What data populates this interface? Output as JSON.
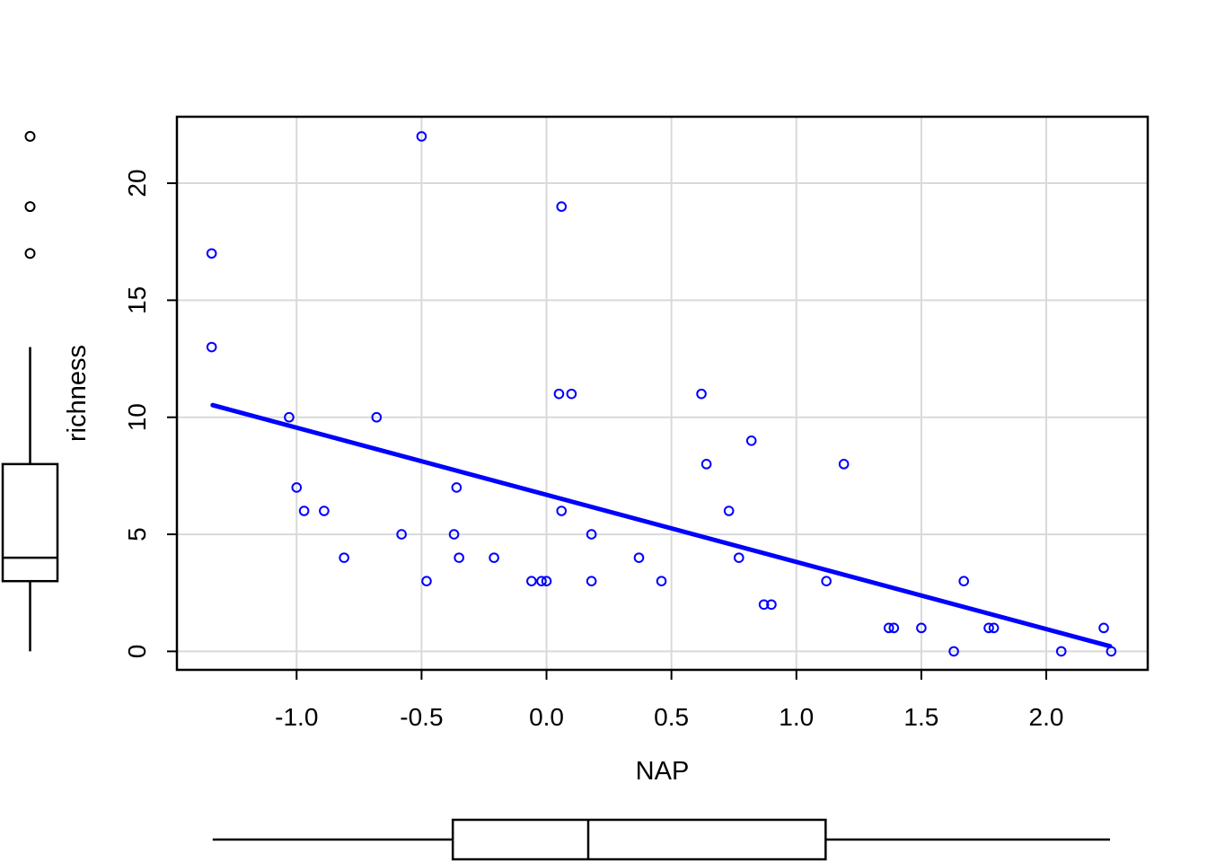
{
  "figure": {
    "background": "#ffffff",
    "point_color": "#0000ff",
    "line_color": "#0000ff",
    "grid_color": "#d9d9d9",
    "axis_color": "#000000",
    "boxplot_color": "#000000",
    "outlier_color": "#000000"
  },
  "chart_data": {
    "type": "scatter",
    "title": "",
    "xlabel": "NAP",
    "ylabel": "richness",
    "grid": true,
    "legend": "none",
    "xlim": [
      -1.479,
      2.406
    ],
    "ylim": [
      -0.79,
      22.84
    ],
    "x_ticks": [
      -1.0,
      -0.5,
      0.0,
      0.5,
      1.0,
      1.5,
      2.0
    ],
    "x_tick_labels": [
      "-1.0",
      "-0.5",
      "0.0",
      "0.5",
      "1.0",
      "1.5",
      "2.0"
    ],
    "y_ticks": [
      0,
      5,
      10,
      15,
      20
    ],
    "y_tick_labels": [
      "0",
      "5",
      "10",
      "15",
      "20"
    ],
    "points": [
      [
        -1.34,
        17
      ],
      [
        -1.34,
        13
      ],
      [
        -1.03,
        10
      ],
      [
        -1.0,
        7
      ],
      [
        -0.97,
        6
      ],
      [
        -0.89,
        6
      ],
      [
        -0.81,
        4
      ],
      [
        -0.68,
        10
      ],
      [
        -0.58,
        5
      ],
      [
        -0.5,
        22
      ],
      [
        -0.48,
        3
      ],
      [
        -0.37,
        5
      ],
      [
        -0.36,
        7
      ],
      [
        -0.35,
        4
      ],
      [
        -0.21,
        4
      ],
      [
        -0.06,
        3
      ],
      [
        -0.02,
        3
      ],
      [
        0.0,
        3
      ],
      [
        0.05,
        11
      ],
      [
        0.06,
        19
      ],
      [
        0.06,
        6
      ],
      [
        0.1,
        11
      ],
      [
        0.18,
        5
      ],
      [
        0.18,
        3
      ],
      [
        0.37,
        4
      ],
      [
        0.46,
        3
      ],
      [
        0.62,
        11
      ],
      [
        0.64,
        8
      ],
      [
        0.73,
        6
      ],
      [
        0.77,
        4
      ],
      [
        0.82,
        9
      ],
      [
        0.87,
        2
      ],
      [
        0.9,
        2
      ],
      [
        1.12,
        3
      ],
      [
        1.19,
        8
      ],
      [
        1.37,
        1
      ],
      [
        1.39,
        1
      ],
      [
        1.5,
        1
      ],
      [
        1.63,
        0
      ],
      [
        1.67,
        3
      ],
      [
        1.77,
        1
      ],
      [
        1.79,
        1
      ],
      [
        2.06,
        0
      ],
      [
        2.23,
        1
      ],
      [
        2.26,
        0
      ]
    ],
    "regression_line": {
      "x1": -1.336,
      "y1": 10.52,
      "x2": 2.255,
      "y2": 0.22,
      "slope": -2.867,
      "intercept": 6.686
    },
    "x_marginal_boxplot": {
      "orientation": "horizontal",
      "whisker_low": -1.336,
      "q1": -0.375,
      "median": 0.167,
      "q3": 1.117,
      "whisker_high": 2.255,
      "outliers": []
    },
    "y_marginal_boxplot": {
      "orientation": "vertical",
      "whisker_low": 0,
      "q1": 3,
      "median": 4,
      "q3": 8,
      "whisker_high": 13,
      "outliers": [
        17,
        19,
        22
      ]
    }
  }
}
